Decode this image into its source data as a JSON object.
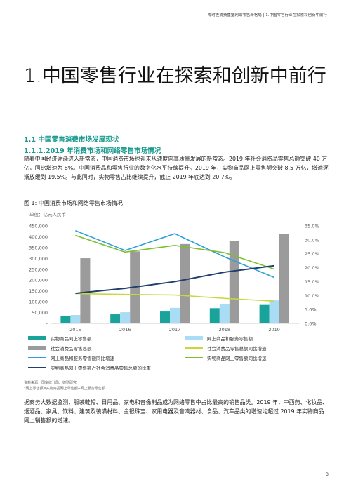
{
  "header": "零时差消费重塑网络零售新格局 | 1.中国零售行业在探索和创新中前行",
  "title": "1.中国零售行业在探索和创新中前行",
  "section1": "1.1 中国零售消费市场发展现状",
  "section2": "1.1.1.2019 年消费市场和网络零售市场情况",
  "paragraph1": "随着中国经济逐渐进入新常态，中国消费市场也迎来从速度向高质量发展的新常态。2019 年社会消费品零售总额突破 40 万亿，同比增速为 8%。中国消费品和零售行业的数字化水平持续提升。2019 年，实物商品网上零售额突破 8.5 万亿，增速逐渐放缓到 19.5%。与此同时，实物零售占比继续提升，截止 2019 年底达到 20.7%。",
  "figure_title": "图 1:  中国消费市场和网络零售市场情况",
  "unit": "单位：亿元人民币",
  "legend": [
    "实物商品网上零售额",
    "网上商品和服务零售额",
    "社会消费品零售总额",
    "社会消费品零售总额同比增速",
    "网上商品和服务零售额同比增速",
    "实物商品网上零售额同比增速",
    "实物商品网上零售额占社会消费品零售总额的比重"
  ],
  "colors": {
    "accent": "#1a9a8e",
    "bar_physical": "#1aa39a",
    "bar_online": "#a9ddf5",
    "bar_total": "#9b9b9b",
    "line_total_growth": "#c8d83a",
    "line_online_growth": "#2a9fd8",
    "line_physical_growth": "#7cbf2a",
    "line_share": "#1f3f6e"
  },
  "source_line1": "资料来源：国家统计局、德勤研究",
  "source_line2": "*网上零售额=实物商品网上零售额+网上服务零售额",
  "paragraph2": "据商务大数据监测，服装鞋帽、日用品、家电和音像制品成为网络零售中占比最高的销售品类。2019 年，中西药、化妆品、烟酒品、家具、饮料、建筑及装潢材料、金银珠宝、家用电器及音响器材、食品、汽车品类的增速均超过 2019 年实物商品网上销售额的增速。",
  "page_number": "3",
  "chart_data": {
    "type": "bar",
    "categories": [
      "2015",
      "2016",
      "2017",
      "2018",
      "2019"
    ],
    "left_axis": {
      "ylim": [
        0,
        450000
      ],
      "ticks": [
        "-",
        "50,000",
        "100,000",
        "150,000",
        "200,000",
        "250,000",
        "300,000",
        "350,000",
        "400,000",
        "450,000"
      ]
    },
    "right_axis": {
      "ylim": [
        0,
        35
      ],
      "ticks": [
        "0.0%",
        "5.0%",
        "10.0%",
        "15.0%",
        "20.0%",
        "25.0%",
        "30.0%",
        "35.0%"
      ]
    },
    "bar_series": [
      {
        "name": "实物商品网上零售额",
        "values": [
          32424,
          41944,
          54806,
          70198,
          85239
        ]
      },
      {
        "name": "网上商品和服务零售额",
        "values": [
          38773,
          51556,
          71751,
          90065,
          106324
        ]
      },
      {
        "name": "社会消费品零售总额",
        "values": [
          300931,
          332316,
          366262,
          380987,
          411649
        ]
      }
    ],
    "line_series": [
      {
        "name": "社会消费品零售总额同比增速",
        "values": [
          10.7,
          10.4,
          10.2,
          9.0,
          8.0
        ]
      },
      {
        "name": "网上商品和服务零售额同比增速",
        "values": [
          33.3,
          26.2,
          32.2,
          23.9,
          16.5
        ]
      },
      {
        "name": "实物商品网上零售额同比增速",
        "values": [
          31.6,
          25.6,
          28.0,
          25.4,
          19.5
        ]
      },
      {
        "name": "实物商品网上零售额占社会消费品零售总额的比重",
        "values": [
          10.8,
          12.6,
          15.0,
          18.4,
          20.7
        ]
      }
    ]
  }
}
